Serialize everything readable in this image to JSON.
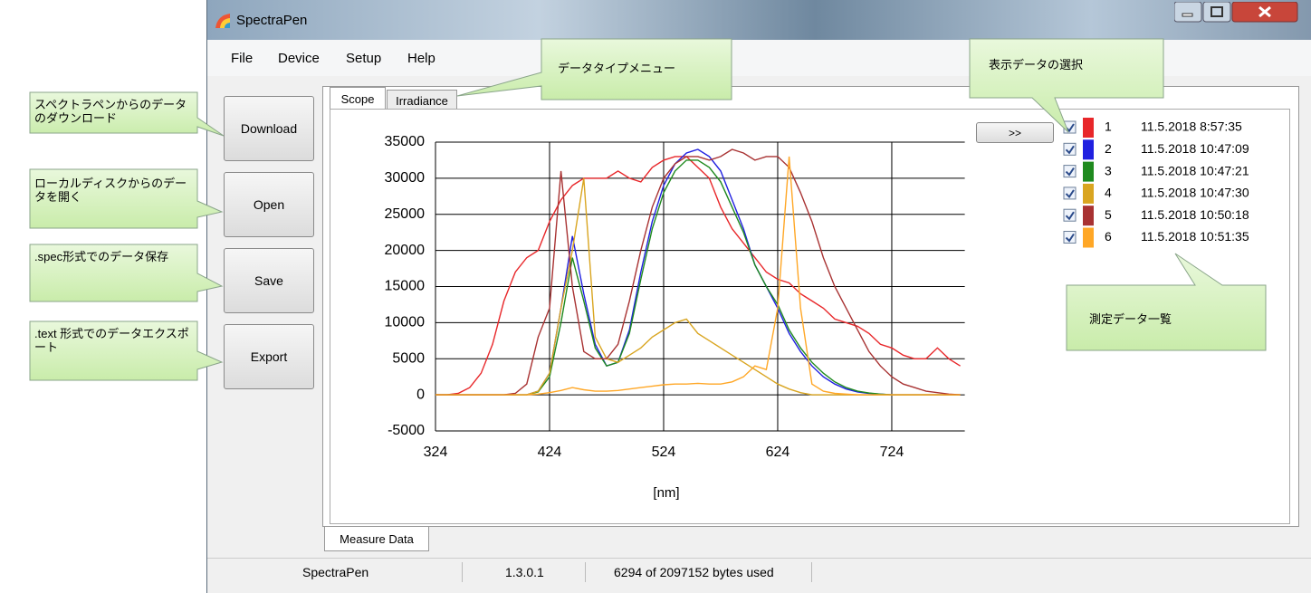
{
  "window": {
    "title": "SpectraPen"
  },
  "menu": [
    "File",
    "Device",
    "Setup",
    "Help"
  ],
  "buttons": [
    "Download",
    "Open",
    "Save",
    "Export"
  ],
  "tabs": [
    "Scope",
    "Irradiance"
  ],
  "expand_button": ">>",
  "bottom_tab": "Measure Data",
  "status_bar": [
    "SpectraPen",
    "1.3.0.1",
    "6294 of 2097152 bytes used"
  ],
  "callouts": [
    "スペクトラペンからのデータのダウンロード",
    "ローカルディスクからのデータを開く",
    ".spec形式でのデータ保存",
    ".text 形式でのデータエクスポート",
    "データタイプメニュー",
    "表示データの選択",
    "測定データ一覧"
  ],
  "chart_data": {
    "type": "line",
    "x_label": "[nm]",
    "x": [
      324,
      334,
      344,
      354,
      364,
      374,
      384,
      394,
      404,
      414,
      424,
      434,
      444,
      454,
      464,
      474,
      484,
      494,
      504,
      514,
      524,
      534,
      544,
      554,
      564,
      574,
      584,
      594,
      604,
      614,
      624,
      634,
      644,
      654,
      664,
      674,
      684,
      694,
      704,
      714,
      724,
      734,
      744,
      754,
      764,
      774,
      784
    ],
    "xlim": [
      324,
      788
    ],
    "xticks": [
      324,
      424,
      524,
      624,
      724
    ],
    "ylim": [
      -5000,
      35000
    ],
    "yticks": [
      -5000,
      0,
      5000,
      10000,
      15000,
      20000,
      25000,
      30000,
      35000
    ],
    "grid": true,
    "series": [
      {
        "name": "1",
        "timestamp": "11.5.2018 8:57:35",
        "color": "#e8272a",
        "values": [
          0,
          0,
          200,
          1000,
          3000,
          7000,
          13000,
          17000,
          19000,
          20000,
          24000,
          27000,
          29000,
          30000,
          30000,
          30000,
          31000,
          30000,
          29500,
          31500,
          32500,
          33000,
          33000,
          31500,
          30000,
          26000,
          23000,
          21000,
          19000,
          17000,
          16000,
          15500,
          14000,
          13000,
          12000,
          10500,
          10000,
          9500,
          8500,
          7000,
          6500,
          5500,
          5000,
          5000,
          6500,
          5000,
          4000
        ]
      },
      {
        "name": "2",
        "timestamp": "11.5.2018 10:47:09",
        "color": "#2020e0",
        "values": [
          0,
          0,
          0,
          0,
          0,
          0,
          0,
          0,
          0,
          500,
          3000,
          12000,
          22000,
          14000,
          7000,
          4000,
          4500,
          9000,
          17000,
          24000,
          29000,
          32000,
          33500,
          34000,
          33000,
          31000,
          27000,
          23000,
          18000,
          15000,
          12000,
          8500,
          6000,
          4000,
          2500,
          1500,
          800,
          400,
          200,
          100,
          0,
          0,
          0,
          0,
          0,
          0,
          0
        ]
      },
      {
        "name": "3",
        "timestamp": "11.5.2018 10:47:21",
        "color": "#1f8a1f",
        "values": [
          0,
          0,
          0,
          0,
          0,
          0,
          0,
          0,
          0,
          400,
          2500,
          10000,
          19000,
          13000,
          6500,
          4000,
          4500,
          8500,
          16000,
          23000,
          28000,
          31000,
          32500,
          32500,
          31500,
          29500,
          26000,
          22500,
          18000,
          15000,
          12500,
          9000,
          6500,
          4500,
          3000,
          1800,
          1000,
          500,
          250,
          100,
          0,
          0,
          0,
          0,
          0,
          0,
          0
        ]
      },
      {
        "name": "4",
        "timestamp": "11.5.2018 10:47:30",
        "color": "#d9a520",
        "values": [
          0,
          0,
          0,
          0,
          0,
          0,
          0,
          0,
          0,
          500,
          3000,
          12000,
          20000,
          30000,
          8000,
          5000,
          4500,
          5500,
          6500,
          8000,
          9000,
          10000,
          10500,
          8500,
          7500,
          6500,
          5500,
          4500,
          3500,
          2500,
          1500,
          800,
          300,
          0,
          0,
          0,
          0,
          0,
          0,
          0,
          0,
          0,
          0,
          0,
          0,
          0,
          0
        ]
      },
      {
        "name": "5",
        "timestamp": "11.5.2018 10:50:18",
        "color": "#a83232",
        "values": [
          0,
          0,
          0,
          0,
          0,
          0,
          0,
          200,
          1500,
          8000,
          12000,
          31000,
          15000,
          6000,
          5000,
          5000,
          7000,
          13000,
          20000,
          26000,
          30000,
          32000,
          33000,
          33000,
          32500,
          33000,
          34000,
          33500,
          32500,
          33000,
          33000,
          31500,
          28000,
          24000,
          19000,
          15000,
          12000,
          9000,
          6000,
          4000,
          2500,
          1500,
          1000,
          500,
          300,
          100,
          0
        ]
      },
      {
        "name": "6",
        "timestamp": "11.5.2018 10:51:35",
        "color": "#ffa726",
        "values": [
          0,
          0,
          0,
          0,
          0,
          0,
          0,
          0,
          0,
          100,
          300,
          600,
          1000,
          700,
          500,
          500,
          600,
          800,
          1000,
          1200,
          1400,
          1500,
          1500,
          1600,
          1500,
          1500,
          1800,
          2500,
          4000,
          3500,
          12000,
          33000,
          12000,
          1500,
          500,
          200,
          100,
          0,
          0,
          0,
          0,
          0,
          0,
          0,
          0,
          0,
          0
        ]
      }
    ]
  }
}
